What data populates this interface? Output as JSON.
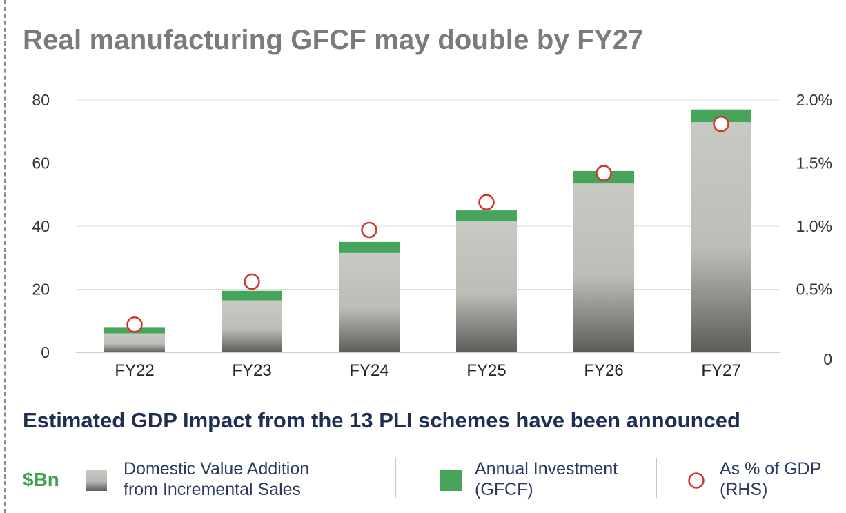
{
  "title": "Real manufacturing GFCF may double by FY27",
  "subtitle": "Estimated GDP Impact from the 13 PLI schemes have been announced",
  "unit_label": "$Bn",
  "legend": {
    "dva_line1": "Domestic Value Addition",
    "dva_line2": "from Incremental Sales",
    "gfcf_line1": "Annual Investment",
    "gfcf_line2": "(GFCF)",
    "gdp_line1": "As % of GDP",
    "gdp_line2": "(RHS)"
  },
  "colors": {
    "gfcf": "#46a55a",
    "dva_top": "#c8c8c3",
    "dva_bottom": "#5a5a57",
    "marker": "#d0342c",
    "title": "#7b7b7b",
    "subtitle": "#1f2e52"
  },
  "chart_data": {
    "type": "bar",
    "stacked": true,
    "categories": [
      "FY22",
      "FY23",
      "FY24",
      "FY25",
      "FY26",
      "FY27"
    ],
    "series": [
      {
        "name": "Domestic Value Addition from Incremental Sales",
        "axis": "left",
        "values": [
          6,
          16.5,
          31.5,
          41.5,
          53.5,
          73
        ]
      },
      {
        "name": "Annual Investment (GFCF)",
        "axis": "left",
        "values": [
          2,
          3,
          3.5,
          3.5,
          4,
          4
        ]
      },
      {
        "name": "As % of GDP (RHS)",
        "axis": "right",
        "type": "scatter",
        "values": [
          0.22,
          0.56,
          0.97,
          1.19,
          1.42,
          1.81
        ]
      }
    ],
    "yticks_left": [
      "0",
      "20",
      "40",
      "60",
      "80"
    ],
    "ylim_left": [
      0,
      80
    ],
    "yticks_right": [
      "0",
      "0.5%",
      "1.0%",
      "1.5%",
      "2.0%"
    ],
    "ylim_right": [
      0,
      2.0
    ],
    "grid": true
  }
}
